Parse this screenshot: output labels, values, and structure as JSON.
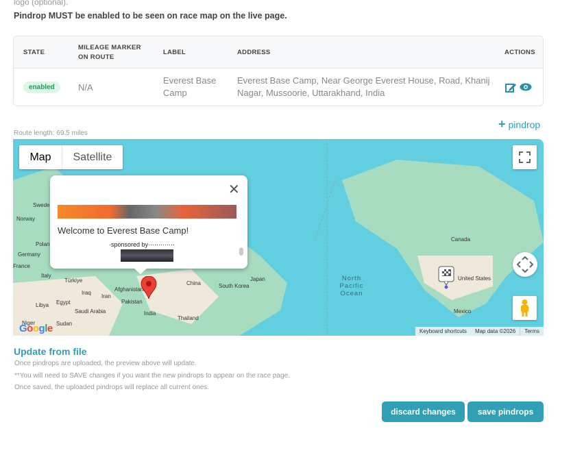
{
  "intro_text": "logo (optional).",
  "warning": "Pindrop MUST be enabled to be seen on race map on the live page.",
  "table": {
    "headers": [
      "STATE",
      "MILEAGE MARKER ON ROUTE",
      "LABEL",
      "ADDRESS",
      "ACTIONS"
    ],
    "rows": [
      {
        "state": "enabled",
        "mileage": "N/A",
        "label": "Everest Base Camp",
        "address": "Everest Base Camp, Near George Everest House, Road, Khanij Nagar, Mussoorie, Uttarakhand, India",
        "actions": [
          "edit-icon",
          "eye-icon"
        ]
      }
    ]
  },
  "route_length": "Route length: 69.5 miles",
  "add_pindrop": "pindrop",
  "map": {
    "type_buttons": [
      "Map",
      "Satellite"
    ],
    "selected_type": "Map",
    "popup": {
      "title": "Welcome to Everest Base Camp!",
      "sponsor": "·sponsored by·············"
    },
    "labels": [
      "Sweden",
      "Norway",
      "Poland",
      "Germany",
      "France",
      "Italy",
      "Türkiye",
      "Iraq",
      "Iran",
      "Afghanistan",
      "Pakistan",
      "India",
      "China",
      "South Korea",
      "Japan",
      "Thailand",
      "Libya",
      "Egypt",
      "Saudi Arabia",
      "Sudan",
      "Niger",
      "North Pacific Ocean",
      "Canada",
      "United States",
      "Mexico"
    ],
    "footer": [
      "Keyboard shortcuts",
      "Map data ©2026",
      "Terms"
    ],
    "logo": "Google"
  },
  "update": {
    "title": "Update from file",
    "notes": [
      "Once pindrops are uploaded, the preview above will update.",
      "**You will need to SAVE changes if you want the new pindrops to appear on the race page.",
      "Once saved, the uploaded pindrops will replace all current ones."
    ]
  },
  "buttons": {
    "discard": "discard changes",
    "save": "save pindrops"
  },
  "colors": {
    "accent": "#31a0b4",
    "badge_bg": "#dcf7e6",
    "badge_text": "#1e9a55",
    "water": "#62cfe0",
    "land": "#a8dcc0"
  }
}
